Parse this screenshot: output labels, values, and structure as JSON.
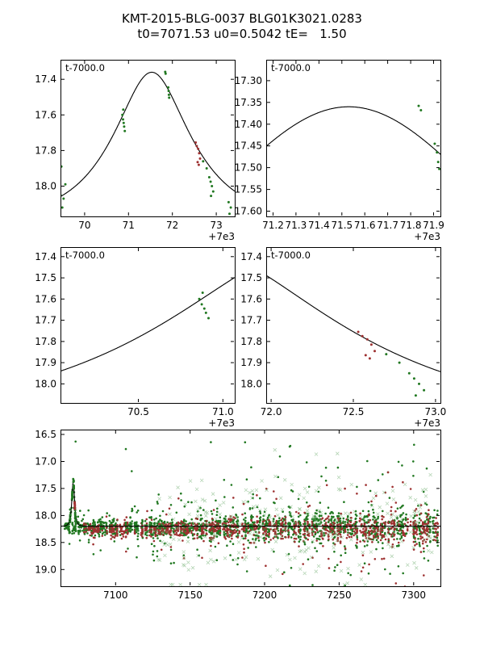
{
  "header": {
    "title": "KMT-2015-BLG-0037 BLG01K3021.0283",
    "subtitle": "t0=7071.53 u0=0.5042 tE=   1.50"
  },
  "model": {
    "t0": 7071.53,
    "u0": 0.5042,
    "tE": 1.5,
    "baseline_mag": 18.2
  },
  "colors": {
    "model_curve": "#000000",
    "green_points": "#217821",
    "red_points": "#9e3131",
    "faint_cross": "#79b279",
    "axis": "#000000"
  },
  "event_series": [
    {
      "name": "observatory-green",
      "color_key": "green",
      "points": [
        [
          69.45,
          18.05
        ],
        [
          69.47,
          17.89
        ],
        [
          69.49,
          18.12
        ],
        [
          69.52,
          18.07
        ],
        [
          69.56,
          17.99
        ],
        [
          70.86,
          17.6
        ],
        [
          70.875,
          17.625
        ],
        [
          70.88,
          17.57
        ],
        [
          70.89,
          17.645
        ],
        [
          70.9,
          17.665
        ],
        [
          70.915,
          17.69
        ],
        [
          71.835,
          17.358
        ],
        [
          71.845,
          17.368
        ],
        [
          71.905,
          17.445
        ],
        [
          71.915,
          17.465
        ],
        [
          71.92,
          17.487
        ],
        [
          71.925,
          17.503
        ],
        [
          72.7,
          17.86
        ],
        [
          72.78,
          17.9
        ],
        [
          72.84,
          17.95
        ],
        [
          72.87,
          17.975
        ],
        [
          72.88,
          18.055
        ],
        [
          72.9,
          18.0
        ],
        [
          72.93,
          18.03
        ],
        [
          73.28,
          18.09
        ],
        [
          73.3,
          18.155
        ],
        [
          73.33,
          18.12
        ]
      ]
    },
    {
      "name": "observatory-red",
      "color_key": "red",
      "points": [
        [
          72.53,
          17.755
        ],
        [
          72.555,
          17.775
        ],
        [
          72.575,
          17.865
        ],
        [
          72.585,
          17.79
        ],
        [
          72.6,
          17.88
        ],
        [
          72.61,
          17.815
        ],
        [
          72.63,
          17.845
        ]
      ]
    }
  ],
  "chart_data": [
    {
      "id": "peak-wide",
      "type": "scatter",
      "annotation": "t-7000.0",
      "x_offset_label": "+7e3",
      "xlim": [
        69.45,
        73.42
      ],
      "ylim_top": 17.29,
      "ylim_bottom": 18.17,
      "xticks": [
        70,
        71,
        72,
        73
      ],
      "xtick_labels": [
        "70",
        "71",
        "72",
        "73"
      ],
      "yticks": [
        17.4,
        17.6,
        17.8,
        18.0
      ],
      "ytick_labels": [
        "17.4",
        "17.6",
        "17.8",
        "18.0"
      ],
      "t_offset": 7000,
      "model_curve": true,
      "use_event_series": true
    },
    {
      "id": "peak-zoom",
      "type": "scatter",
      "annotation": "t-7000.0",
      "x_offset_label": "+7e3",
      "xlim": [
        71.17,
        71.93
      ],
      "ylim_top": 17.252,
      "ylim_bottom": 17.612,
      "xticks": [
        71.2,
        71.3,
        71.4,
        71.5,
        71.6,
        71.7,
        71.8,
        71.9
      ],
      "xtick_labels": [
        "71.2",
        "71.3",
        "71.4",
        "71.5",
        "71.6",
        "71.7",
        "71.8",
        "71.9"
      ],
      "yticks": [
        17.3,
        17.35,
        17.4,
        17.45,
        17.5,
        17.55,
        17.6
      ],
      "ytick_labels": [
        "17.30",
        "17.35",
        "17.40",
        "17.45",
        "17.50",
        "17.55",
        "17.60"
      ],
      "t_offset": 7000,
      "model_curve": true,
      "use_event_series": true
    },
    {
      "id": "rising-wing",
      "type": "scatter",
      "annotation": "t-7000.0",
      "x_offset_label": "+7e3",
      "xlim": [
        70.04,
        71.07
      ],
      "ylim_top": 17.355,
      "ylim_bottom": 18.09,
      "xticks": [
        70.5,
        71.0
      ],
      "xtick_labels": [
        "70.5",
        "71.0"
      ],
      "yticks": [
        17.4,
        17.5,
        17.6,
        17.7,
        17.8,
        17.9,
        18.0
      ],
      "ytick_labels": [
        "17.4",
        "17.5",
        "17.6",
        "17.7",
        "17.8",
        "17.9",
        "18.0"
      ],
      "t_offset": 7000,
      "model_curve": true,
      "use_event_series": true
    },
    {
      "id": "falling-wing",
      "type": "scatter",
      "annotation": "t-7000.0",
      "x_offset_label": "+7e3",
      "xlim": [
        71.97,
        73.03
      ],
      "ylim_top": 17.355,
      "ylim_bottom": 18.09,
      "xticks": [
        72.0,
        72.5,
        73.0
      ],
      "xtick_labels": [
        "72.0",
        "72.5",
        "73.0"
      ],
      "yticks": [
        17.4,
        17.5,
        17.6,
        17.7,
        17.8,
        17.9,
        18.0
      ],
      "ytick_labels": [
        "17.4",
        "17.5",
        "17.6",
        "17.7",
        "17.8",
        "17.9",
        "18.0"
      ],
      "t_offset": 7000,
      "model_curve": true,
      "use_event_series": true
    },
    {
      "id": "full-light-curve",
      "type": "scatter",
      "annotation": "",
      "x_offset_label": "",
      "xlim": [
        7063,
        7318
      ],
      "ylim_top": 16.41,
      "ylim_bottom": 19.31,
      "xticks": [
        7100,
        7150,
        7200,
        7250,
        7300
      ],
      "xtick_labels": [
        "7100",
        "7150",
        "7200",
        "7250",
        "7300"
      ],
      "yticks": [
        16.5,
        17.0,
        17.5,
        18.0,
        18.5,
        19.0
      ],
      "ytick_labels": [
        "16.5",
        "17.0",
        "17.5",
        "18.0",
        "18.5",
        "19.0"
      ],
      "t_offset": 0,
      "model_curve": true,
      "use_event_series": true,
      "scatter_spec": {
        "seed": 20150037,
        "night_start": 7066,
        "night_end": 7316,
        "green_baseline": 18.22,
        "red_baseline": 18.26,
        "green_pts_min": 4,
        "green_pts_max": 13,
        "red_pts_min": 3,
        "red_pts_max": 10,
        "red_start": 7078,
        "sigma_base": 0.055,
        "sigma_growth": 0.115,
        "outlier_frac": 0.1,
        "event_span": [
          7066.5,
          7076.5
        ],
        "event_pts": 55,
        "cross_count": 260,
        "cross_sigma": 0.5,
        "cross_start": 7128,
        "cross_span": 185
      }
    }
  ]
}
